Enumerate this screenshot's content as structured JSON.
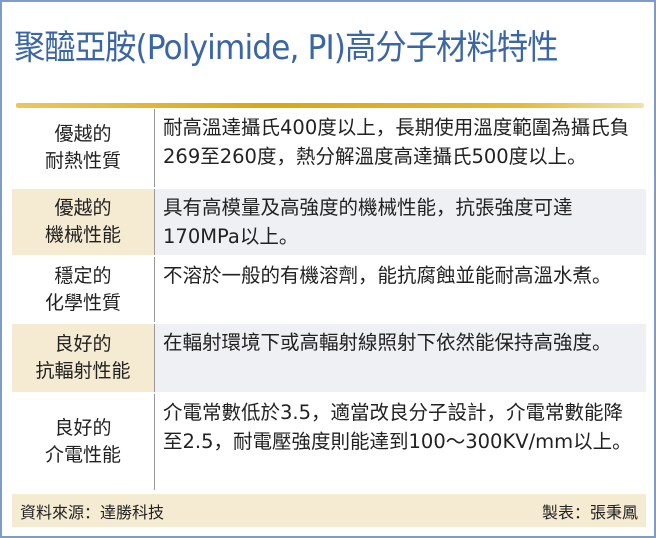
{
  "title": "聚醯亞胺(Polyimide, PI)高分子材料特性",
  "rows": [
    {
      "label": [
        "優越的",
        "耐熱性質"
      ],
      "desc": "耐高溫達攝氏400度以上，長期使用溫度範圍為攝氏負269至260度，熱分解溫度高達攝氏500度以上。"
    },
    {
      "label": [
        "優越的",
        "機械性能"
      ],
      "desc": "具有高模量及高強度的機械性能，抗張強度可達170MPa以上。"
    },
    {
      "label": [
        "穩定的",
        "化學性質"
      ],
      "desc": "不溶於一般的有機溶劑，能抗腐蝕並能耐高溫水煮。"
    },
    {
      "label": [
        "良好的",
        "抗輻射性能"
      ],
      "desc": "在輻射環境下或高輻射線照射下依然能保持高強度。"
    },
    {
      "label": [
        "良好的",
        "介電性能"
      ],
      "desc": "介電常數低於3.5，適當改良分子設計，介電常數能降至2.5，耐電壓強度則能達到100～300KV/mm以上。"
    }
  ],
  "footer": {
    "source": "資料來源：達勝科技",
    "credit": "製表：張秉鳳"
  },
  "colors": {
    "title": "#3a66a6",
    "border": "#7f9cc4",
    "gold_rule": "#d4a912",
    "label_alt_bg": "#f5ebd2",
    "desc_alt_bg": "#eef0f4"
  }
}
